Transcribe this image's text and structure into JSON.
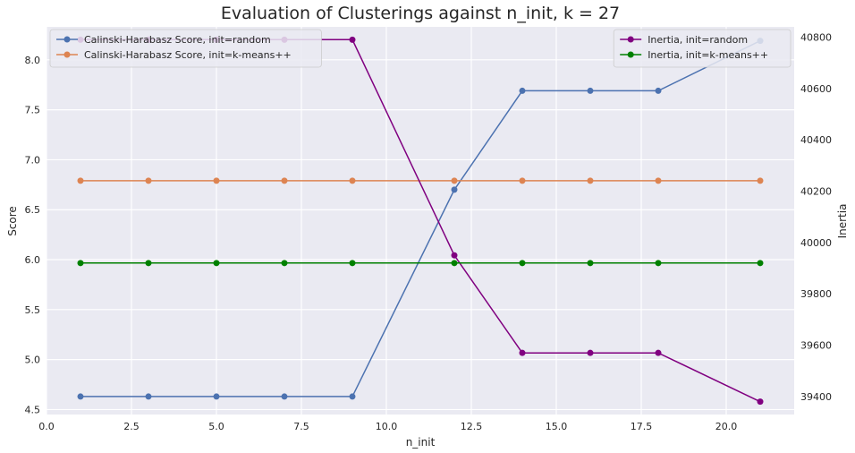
{
  "chart_data": {
    "type": "line",
    "title": "Evaluation of Clusterings against n_init, k = 27",
    "xlabel": "n_init",
    "ylabel": "Score",
    "y2label": "Inertia",
    "xlim": [
      0,
      22
    ],
    "ylim": [
      4.45,
      8.33
    ],
    "y2lim": [
      39330,
      40840
    ],
    "x_ticks": [
      0,
      2.5,
      5,
      7.5,
      10,
      12.5,
      15,
      17.5,
      20
    ],
    "x_tick_labels": [
      "0.0",
      "2.5",
      "5.0",
      "7.5",
      "10.0",
      "12.5",
      "15.0",
      "17.5",
      "20.0"
    ],
    "y_ticks": [
      4.5,
      5.0,
      5.5,
      6.0,
      6.5,
      7.0,
      7.5,
      8.0
    ],
    "y_tick_labels": [
      "4.5",
      "5.0",
      "5.5",
      "6.0",
      "6.5",
      "7.0",
      "7.5",
      "8.0"
    ],
    "y2_ticks": [
      39400,
      39600,
      39800,
      40000,
      40200,
      40400,
      40600,
      40800
    ],
    "y2_tick_labels": [
      "39400",
      "39600",
      "39800",
      "40000",
      "40200",
      "40400",
      "40600",
      "40800"
    ],
    "grid": true,
    "x": [
      1,
      3,
      5,
      7,
      9,
      12,
      14,
      16,
      18,
      21
    ],
    "series": [
      {
        "name": "Calinski-Harabasz Score, init=random",
        "axis": "left",
        "color": "#4c72b0",
        "values": [
          4.63,
          4.63,
          4.63,
          4.63,
          4.63,
          6.7,
          7.69,
          7.69,
          7.69,
          8.19
        ]
      },
      {
        "name": "Calinski-Harabasz Score, init=k-means++",
        "axis": "left",
        "color": "#dd8452",
        "values": [
          6.79,
          6.79,
          6.79,
          6.79,
          6.79,
          6.79,
          6.79,
          6.79,
          6.79,
          6.79
        ]
      },
      {
        "name": "Inertia, init=random",
        "axis": "right",
        "color": "#800080",
        "values": [
          40790,
          40790,
          40790,
          40790,
          40790,
          39950,
          39570,
          39570,
          39570,
          39380
        ]
      },
      {
        "name": "Inertia, init=k-means++",
        "axis": "right",
        "color": "#008000",
        "values": [
          39920,
          39920,
          39920,
          39920,
          39920,
          39920,
          39920,
          39920,
          39920,
          39920
        ]
      }
    ],
    "legend_left_placement": "upper-left",
    "legend_right_placement": "upper-right"
  }
}
